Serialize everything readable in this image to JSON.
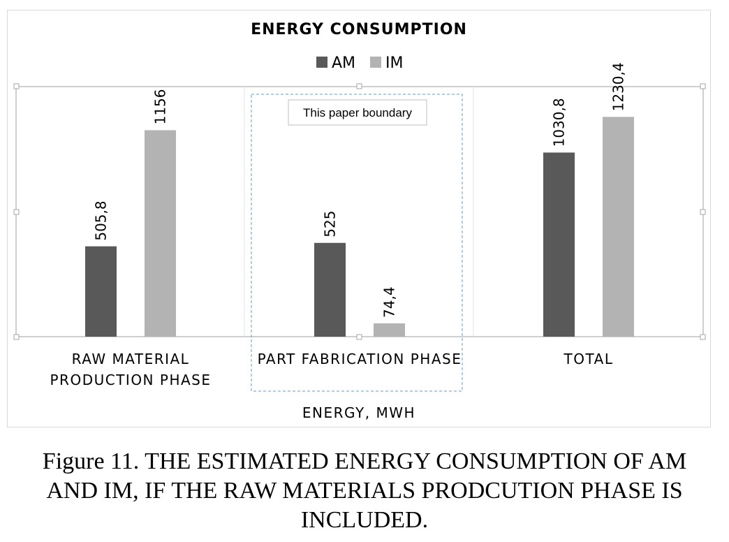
{
  "chart_data": {
    "type": "bar",
    "title": "ENERGY CONSUMPTION",
    "categories": [
      [
        "RAW MATERIAL",
        "PRODUCTION PHASE"
      ],
      [
        "PART FABRICATION PHASE"
      ],
      [
        "TOTAL"
      ]
    ],
    "series": [
      {
        "name": "AM",
        "color": "#595959",
        "values": [
          505.8,
          525,
          1030.8
        ],
        "labels": [
          "505,8",
          "525",
          "1030,8"
        ]
      },
      {
        "name": "IM",
        "color": "#b3b3b3",
        "values": [
          1156,
          74.4,
          1230.4
        ],
        "labels": [
          "1156",
          "74,4",
          "1230,4"
        ]
      }
    ],
    "xlabel": "ENERGY, MWH",
    "ylabel": "",
    "ylim": [
      0,
      1400
    ],
    "grid": false,
    "legend": "top-center",
    "annotation": "This paper boundary"
  },
  "caption": {
    "line1": "Figure 11. THE ESTIMATED ENERGY CONSUMPTION OF AM",
    "line2": "AND IM, IF THE RAW MATERIALS PRODCUTION PHASE IS",
    "line3": "INCLUDED."
  }
}
